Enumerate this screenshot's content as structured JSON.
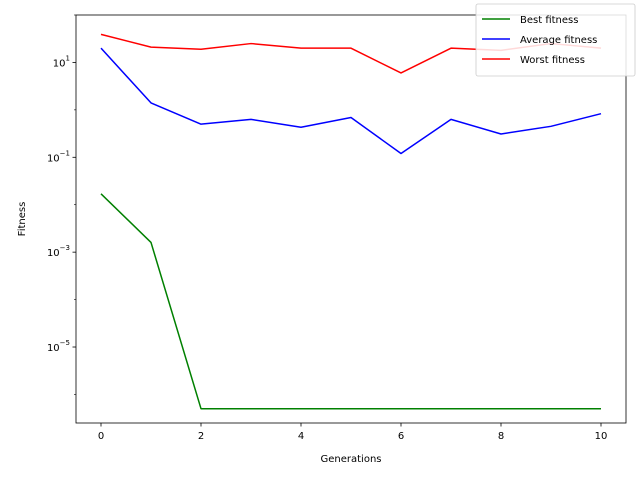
{
  "chart_data": {
    "type": "line",
    "title": "",
    "xlabel": "Generations",
    "ylabel": "Fitness",
    "yscale": "log",
    "xlim": [
      -0.5,
      10.5
    ],
    "ylim": [
      2.5e-07,
      100
    ],
    "grid": false,
    "legend_position": "top-right",
    "x": [
      0,
      1,
      2,
      3,
      4,
      5,
      6,
      7,
      8,
      9,
      10
    ],
    "x_ticks": [
      0,
      2,
      4,
      6,
      8,
      10
    ],
    "y_ticks": [
      {
        "value": 10,
        "base": "10",
        "exp": "1"
      },
      {
        "value": 0.1,
        "base": "10",
        "exp": "−1"
      },
      {
        "value": 0.001,
        "base": "10",
        "exp": "−3"
      },
      {
        "value": 1e-05,
        "base": "10",
        "exp": "−5"
      }
    ],
    "series": [
      {
        "name": "Best fitness",
        "color": "#008000",
        "values": [
          0.017,
          0.0016,
          5e-07,
          5e-07,
          5e-07,
          5e-07,
          5e-07,
          5e-07,
          5e-07,
          5e-07,
          5e-07
        ]
      },
      {
        "name": "Average fitness",
        "color": "#0000ff",
        "values": [
          20,
          1.4,
          0.5,
          0.63,
          0.43,
          0.69,
          0.12,
          0.63,
          0.31,
          0.45,
          0.83
        ]
      },
      {
        "name": "Worst fitness",
        "color": "#ff0000",
        "values": [
          39,
          21,
          19,
          25,
          20,
          20,
          6,
          20,
          18,
          25,
          20
        ]
      }
    ]
  }
}
